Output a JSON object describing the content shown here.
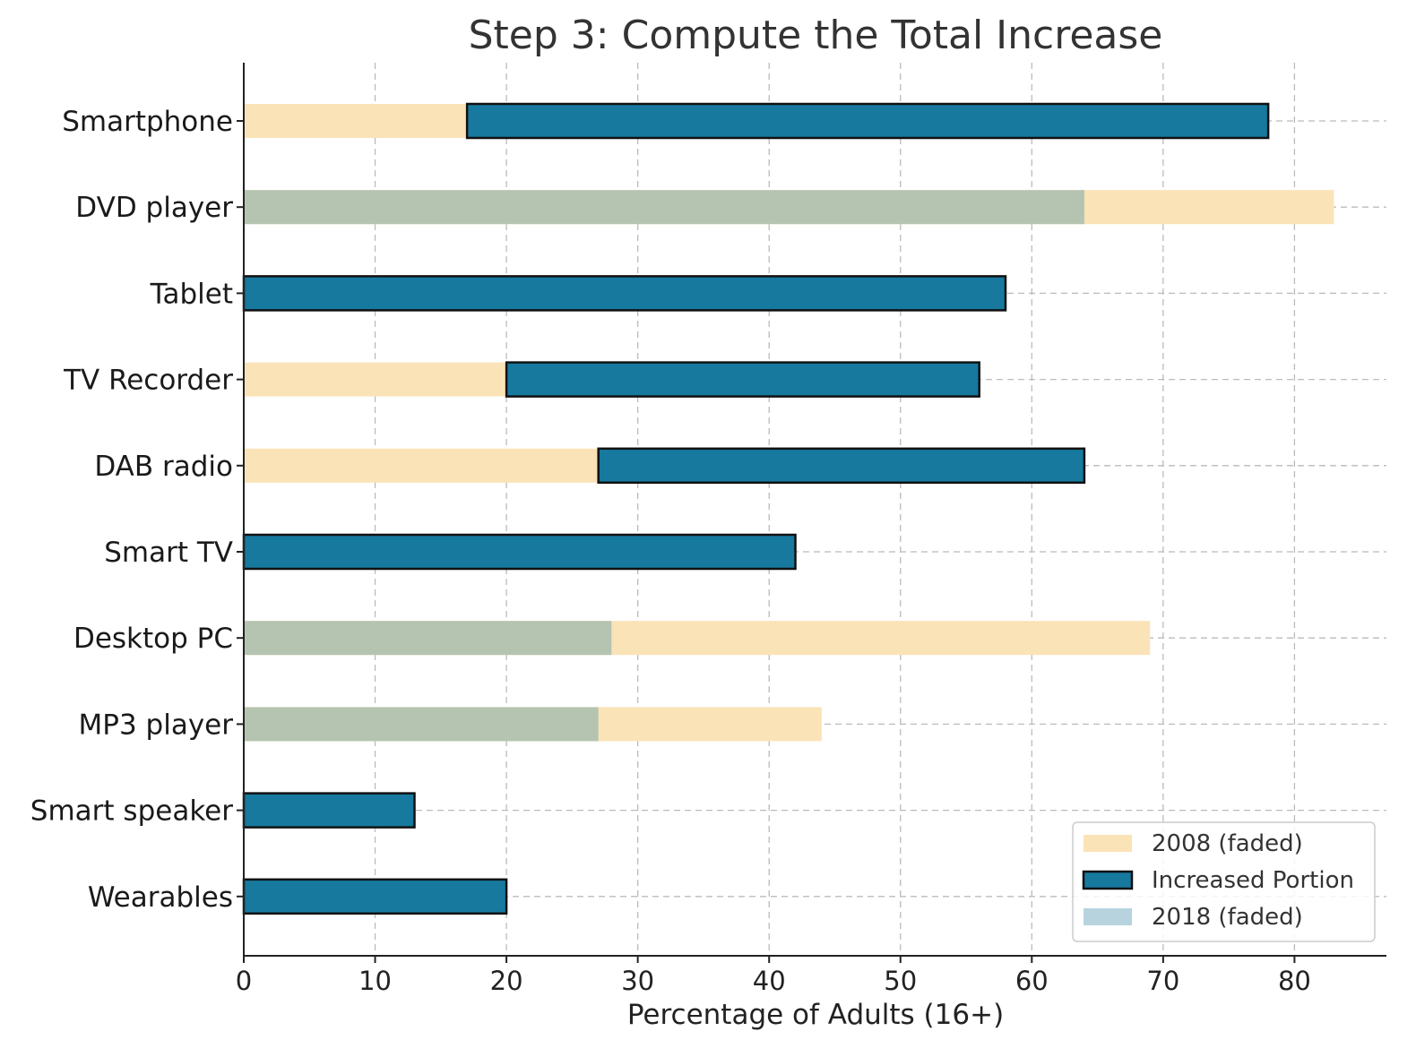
{
  "colors": {
    "faded_2008": "#fbe3b8",
    "increase": "#17799e",
    "faded_2018": "#b5c4b1",
    "legend_2018": "#b7d4de",
    "outline": "#111111"
  },
  "chart_data": {
    "type": "bar",
    "orientation": "horizontal",
    "title": "Step 3: Compute the Total Increase",
    "xlabel": "Percentage of Adults (16+)",
    "ylabel": "",
    "xlim": [
      0,
      87
    ],
    "xticks": [
      0,
      10,
      20,
      30,
      40,
      50,
      60,
      70,
      80
    ],
    "grid": true,
    "legend_position": "bottom-right",
    "legend": [
      {
        "label": "2008 (faded)",
        "style": "faded_2008"
      },
      {
        "label": "Increased Portion",
        "style": "increase"
      },
      {
        "label": "2018 (faded)",
        "style": "legend_2018"
      }
    ],
    "categories": [
      "Smartphone",
      "DVD player",
      "Tablet",
      "TV Recorder",
      "DAB radio",
      "Smart TV",
      "Desktop PC",
      "MP3 player",
      "Smart speaker",
      "Wearables"
    ],
    "series": [
      {
        "name": "2008 (faded)",
        "values": [
          17,
          83,
          0,
          20,
          27,
          0,
          69,
          44,
          0,
          0
        ]
      },
      {
        "name": "2018 (faded)",
        "values": [
          78,
          64,
          58,
          56,
          64,
          42,
          28,
          27,
          13,
          20
        ]
      }
    ]
  }
}
